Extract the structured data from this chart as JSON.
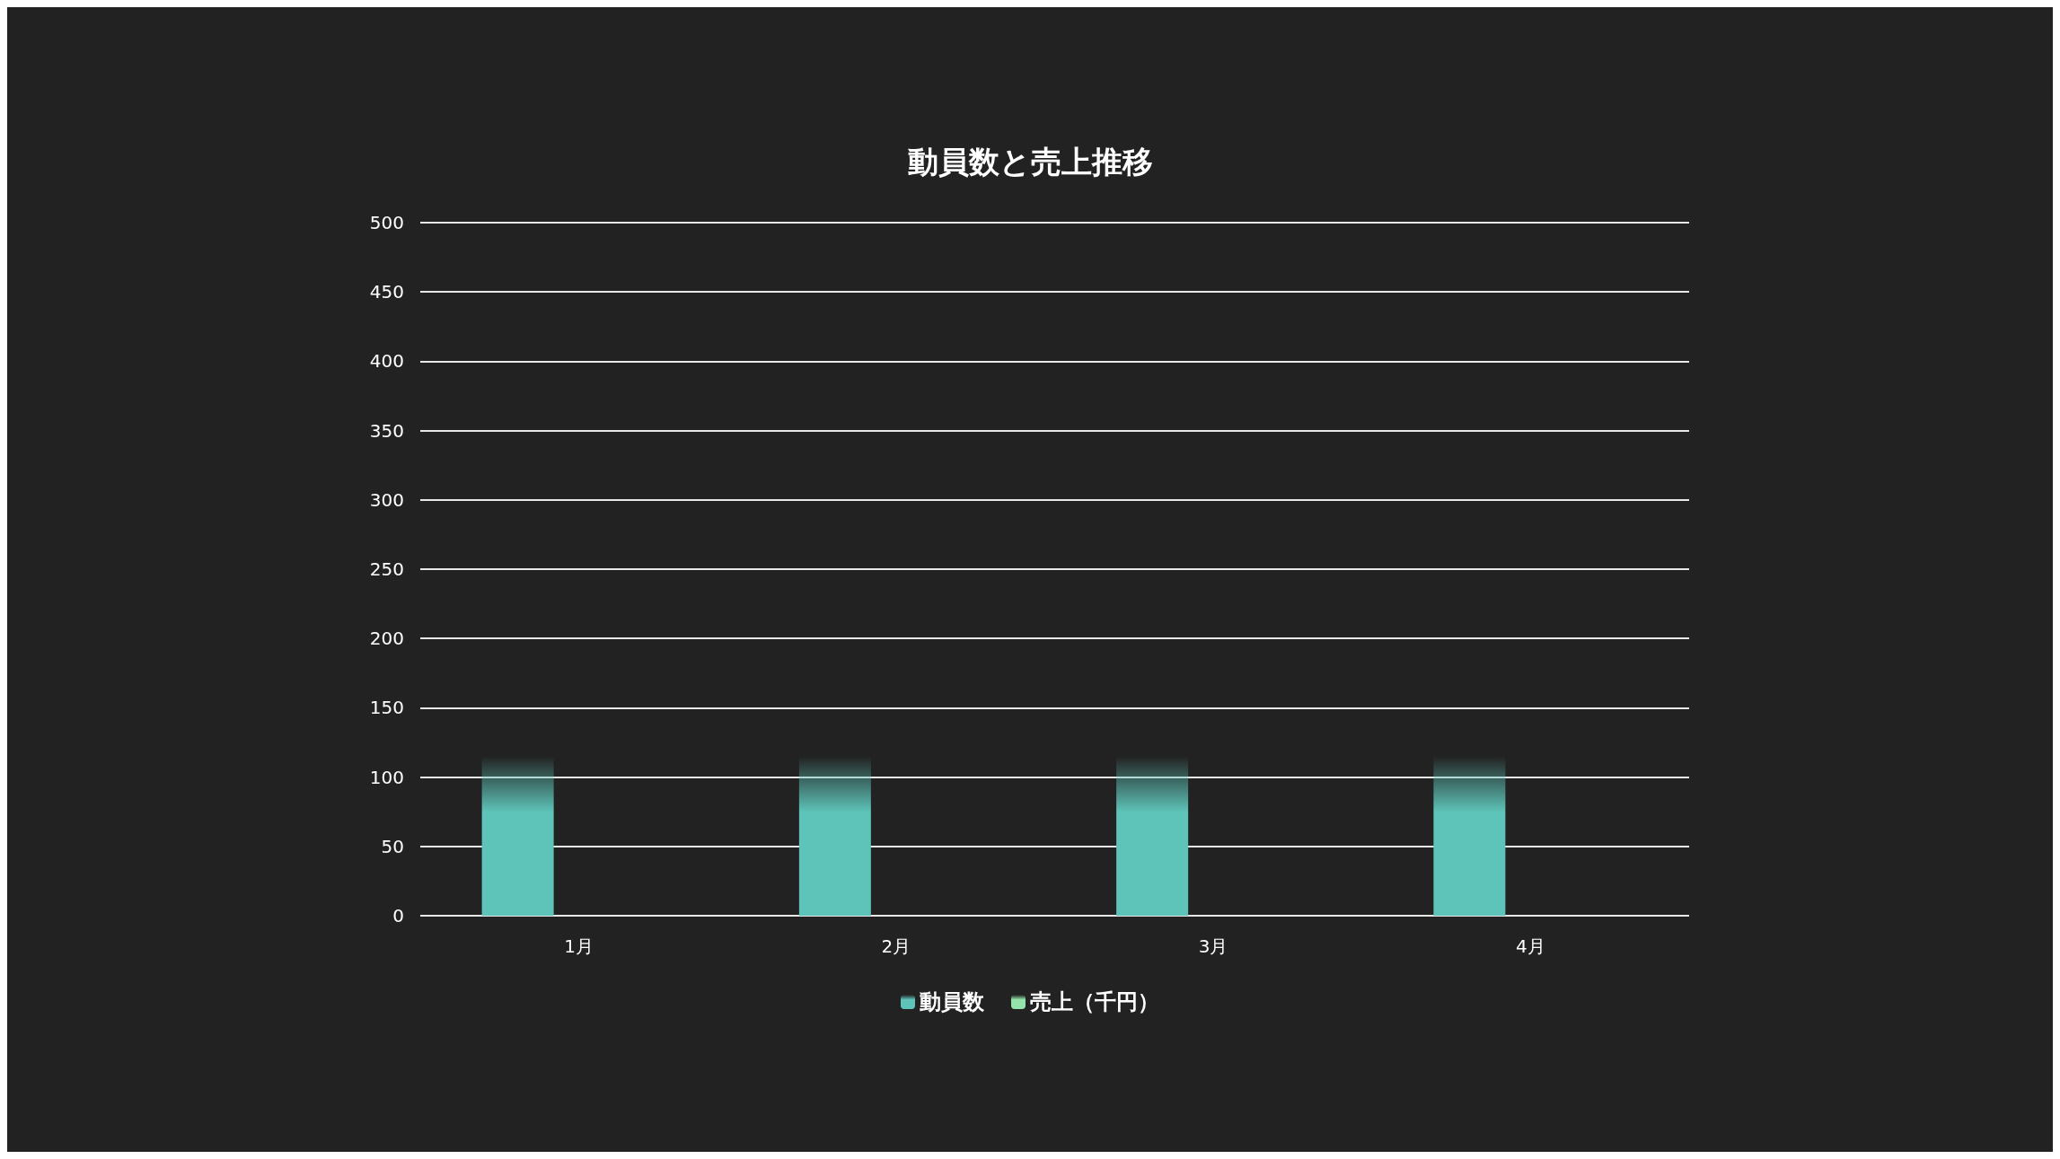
{
  "chart_data": {
    "type": "bar",
    "title": "動員数と売上推移",
    "categories": [
      "1月",
      "2月",
      "3月",
      "4月"
    ],
    "series": [
      {
        "name": "動員数",
        "color": "#5ec4b9",
        "values": [
          115,
          115,
          115,
          115
        ]
      },
      {
        "name": "売上（千円）",
        "color": "#94e3ac",
        "values": [
          null,
          null,
          null,
          null
        ]
      }
    ],
    "ylim": [
      0,
      500
    ],
    "yticks": [
      0,
      50,
      100,
      150,
      200,
      250,
      300,
      350,
      400,
      450,
      500
    ],
    "grid": "y",
    "legend": "bottom"
  }
}
